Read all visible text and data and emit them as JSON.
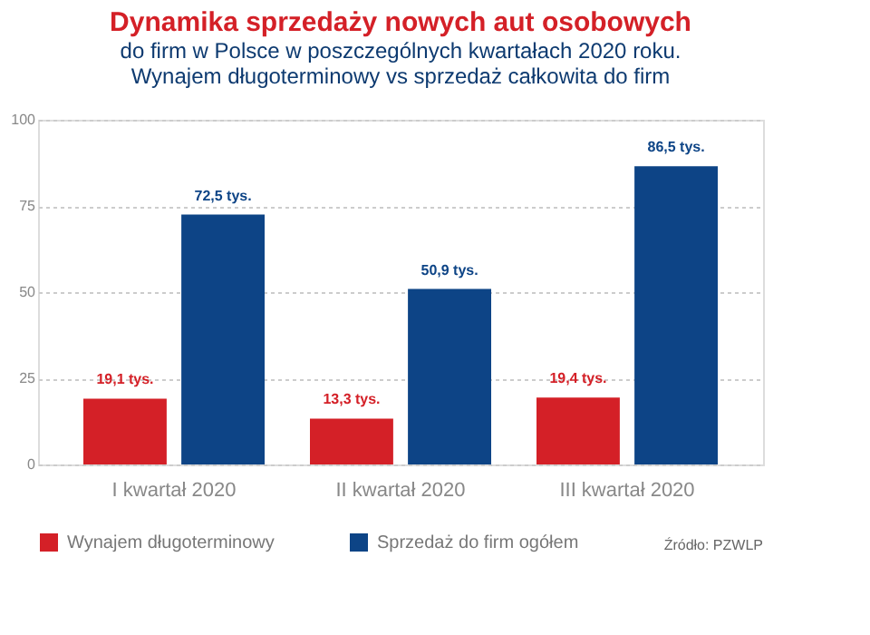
{
  "chart_data": {
    "type": "bar",
    "title": "Dynamika sprzedaży nowych aut osobowych",
    "subtitle": [
      "do firm w Polsce w poszczególnych kwartałach 2020 roku.",
      "Wynajem długoterminowy vs sprzedaż całkowita do firm"
    ],
    "categories": [
      "I kwartał 2020",
      "II kwartał 2020",
      "III kwartał 2020"
    ],
    "series": [
      {
        "name": "Wynajem długoterminowy",
        "color": "#d42027",
        "values": [
          19.1,
          13.3,
          19.4
        ],
        "value_labels": [
          "19,1 tys.",
          "13,3 tys.",
          "19,4 tys."
        ]
      },
      {
        "name": "Sprzedaż do firm ogółem",
        "color": "#0d4486",
        "values": [
          72.5,
          50.9,
          86.5
        ],
        "value_labels": [
          "72,5 tys.",
          "50,9 tys.",
          "86,5 tys."
        ]
      }
    ],
    "ylim": [
      0,
      100
    ],
    "yticks": [
      0,
      25,
      50,
      75,
      100
    ],
    "grid": "y",
    "legend": "bottom",
    "annotations": [
      "Źródło: PZWLP"
    ]
  }
}
